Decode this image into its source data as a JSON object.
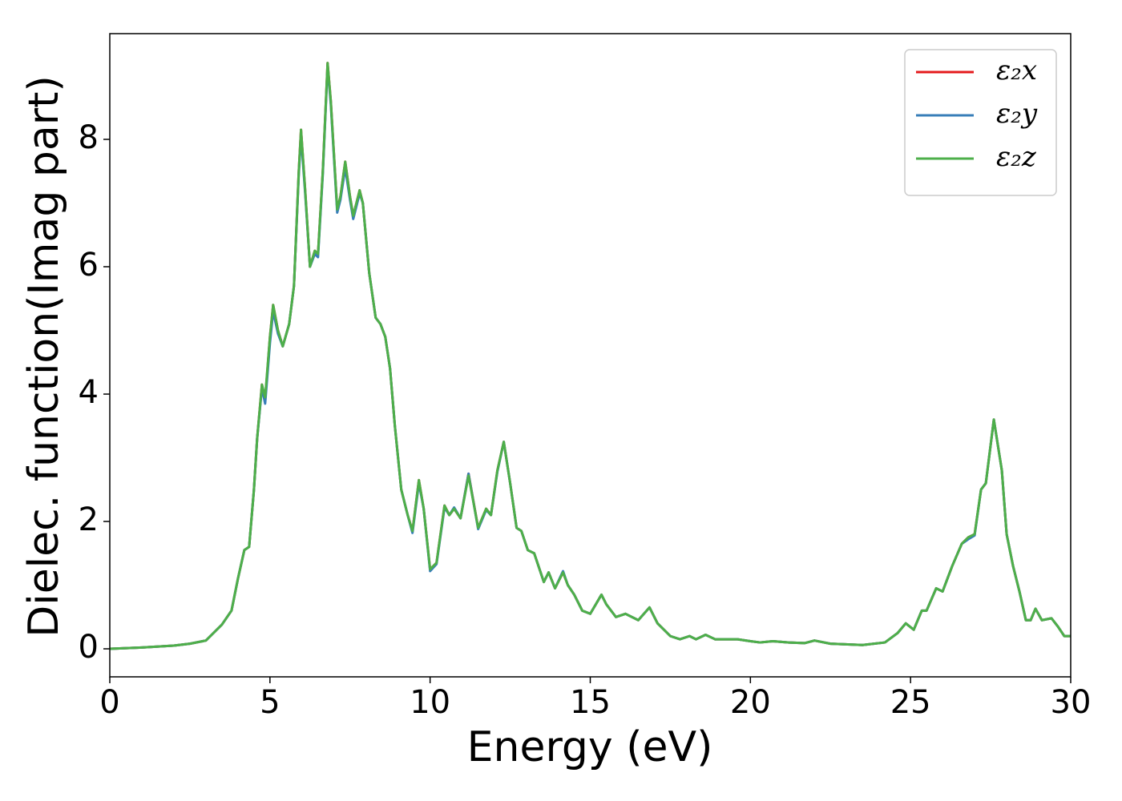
{
  "chart_data": {
    "type": "line",
    "xlabel": "Energy (eV)",
    "ylabel": "Dielec. function(Imag part)",
    "xlim": [
      0,
      30
    ],
    "xticks": [
      0,
      5,
      10,
      15,
      20,
      25,
      30
    ],
    "ylim": [
      -0.44,
      9.66
    ],
    "yticks": [
      0,
      2,
      4,
      6,
      8
    ],
    "legend": "upper right",
    "x": [
      0,
      1,
      2,
      2.5,
      3,
      3.5,
      3.8,
      4.0,
      4.2,
      4.35,
      4.5,
      4.6,
      4.75,
      4.85,
      5.0,
      5.1,
      5.25,
      5.4,
      5.6,
      5.75,
      5.9,
      5.97,
      6.1,
      6.25,
      6.4,
      6.5,
      6.65,
      6.8,
      6.9,
      7.1,
      7.2,
      7.35,
      7.5,
      7.6,
      7.8,
      7.9,
      8.1,
      8.3,
      8.45,
      8.6,
      8.75,
      8.9,
      9.1,
      9.3,
      9.45,
      9.65,
      9.8,
      10.0,
      10.2,
      10.45,
      10.6,
      10.75,
      10.95,
      11.2,
      11.5,
      11.75,
      11.9,
      12.1,
      12.3,
      12.5,
      12.7,
      12.85,
      13.05,
      13.25,
      13.55,
      13.7,
      13.9,
      14.15,
      14.3,
      14.5,
      14.75,
      15.0,
      15.35,
      15.5,
      15.8,
      16.1,
      16.5,
      16.85,
      17.1,
      17.5,
      17.8,
      18.1,
      18.3,
      18.6,
      18.9,
      19.2,
      19.6,
      20.0,
      20.3,
      20.7,
      21.2,
      21.7,
      22.0,
      22.5,
      23.5,
      24.2,
      24.6,
      24.85,
      25.1,
      25.35,
      25.5,
      25.8,
      26.0,
      26.3,
      26.6,
      26.8,
      27.0,
      27.2,
      27.35,
      27.6,
      27.85,
      28.0,
      28.2,
      28.4,
      28.6,
      28.75,
      28.9,
      29.1,
      29.4,
      29.6,
      29.8,
      30.0
    ],
    "series": [
      {
        "name": "ε₂x",
        "color": "#e41a1c",
        "values": [
          0,
          0.02,
          0.05,
          0.08,
          0.13,
          0.38,
          0.6,
          1.1,
          1.55,
          1.6,
          2.5,
          3.3,
          4.15,
          3.9,
          4.9,
          5.4,
          5.0,
          4.75,
          5.1,
          5.7,
          7.5,
          8.15,
          7.2,
          6.0,
          6.25,
          6.2,
          7.5,
          9.2,
          8.6,
          6.9,
          7.1,
          7.65,
          7.1,
          6.8,
          7.2,
          7.0,
          5.9,
          5.2,
          5.1,
          4.9,
          4.4,
          3.5,
          2.5,
          2.1,
          1.85,
          2.65,
          2.2,
          1.25,
          1.35,
          2.25,
          2.1,
          2.2,
          2.05,
          2.75,
          1.9,
          2.2,
          2.1,
          2.8,
          3.25,
          2.6,
          1.9,
          1.85,
          1.55,
          1.5,
          1.05,
          1.2,
          0.95,
          1.2,
          1.0,
          0.85,
          0.6,
          0.55,
          0.85,
          0.7,
          0.5,
          0.55,
          0.45,
          0.65,
          0.4,
          0.2,
          0.15,
          0.2,
          0.15,
          0.22,
          0.15,
          0.15,
          0.15,
          0.12,
          0.1,
          0.12,
          0.1,
          0.09,
          0.13,
          0.08,
          0.06,
          0.1,
          0.25,
          0.4,
          0.3,
          0.6,
          0.6,
          0.95,
          0.9,
          1.3,
          1.65,
          1.75,
          1.8,
          2.5,
          2.6,
          3.6,
          2.8,
          1.8,
          1.3,
          0.9,
          0.45,
          0.45,
          0.63,
          0.45,
          0.48,
          0.35,
          0.2,
          0.2
        ]
      },
      {
        "name": "ε₂y",
        "color": "#377eb8",
        "values": [
          0,
          0.02,
          0.05,
          0.08,
          0.13,
          0.38,
          0.6,
          1.1,
          1.55,
          1.6,
          2.5,
          3.3,
          4.1,
          3.85,
          4.8,
          5.3,
          4.95,
          4.75,
          5.1,
          5.7,
          7.45,
          8.05,
          7.15,
          6.0,
          6.2,
          6.15,
          7.45,
          9.15,
          8.55,
          6.85,
          7.05,
          7.55,
          7.05,
          6.75,
          7.15,
          7.0,
          5.9,
          5.2,
          5.1,
          4.9,
          4.4,
          3.5,
          2.5,
          2.1,
          1.82,
          2.6,
          2.2,
          1.22,
          1.33,
          2.22,
          2.1,
          2.22,
          2.05,
          2.75,
          1.88,
          2.18,
          2.1,
          2.78,
          3.25,
          2.6,
          1.9,
          1.85,
          1.55,
          1.5,
          1.05,
          1.2,
          0.95,
          1.22,
          1.0,
          0.85,
          0.6,
          0.55,
          0.85,
          0.7,
          0.5,
          0.55,
          0.45,
          0.65,
          0.4,
          0.2,
          0.15,
          0.2,
          0.15,
          0.22,
          0.15,
          0.15,
          0.15,
          0.12,
          0.1,
          0.12,
          0.1,
          0.09,
          0.13,
          0.08,
          0.06,
          0.1,
          0.25,
          0.4,
          0.3,
          0.6,
          0.6,
          0.95,
          0.9,
          1.3,
          1.65,
          1.72,
          1.78,
          2.5,
          2.6,
          3.6,
          2.8,
          1.8,
          1.3,
          0.9,
          0.45,
          0.45,
          0.63,
          0.45,
          0.48,
          0.35,
          0.2,
          0.2
        ]
      },
      {
        "name": "ε₂z",
        "color": "#4daf4a",
        "values": [
          0,
          0.02,
          0.05,
          0.08,
          0.13,
          0.38,
          0.6,
          1.1,
          1.55,
          1.6,
          2.5,
          3.3,
          4.15,
          3.95,
          4.9,
          5.4,
          5.0,
          4.75,
          5.1,
          5.7,
          7.5,
          8.15,
          7.2,
          6.0,
          6.25,
          6.2,
          7.5,
          9.2,
          8.6,
          6.9,
          7.1,
          7.65,
          7.1,
          6.8,
          7.2,
          7.0,
          5.9,
          5.2,
          5.1,
          4.9,
          4.4,
          3.5,
          2.5,
          2.1,
          1.85,
          2.65,
          2.2,
          1.25,
          1.35,
          2.25,
          2.1,
          2.2,
          2.05,
          2.72,
          1.9,
          2.2,
          2.1,
          2.8,
          3.25,
          2.6,
          1.9,
          1.85,
          1.55,
          1.5,
          1.05,
          1.2,
          0.95,
          1.2,
          1.0,
          0.85,
          0.6,
          0.55,
          0.85,
          0.7,
          0.5,
          0.55,
          0.45,
          0.65,
          0.4,
          0.2,
          0.15,
          0.2,
          0.15,
          0.22,
          0.15,
          0.15,
          0.15,
          0.12,
          0.1,
          0.12,
          0.1,
          0.09,
          0.13,
          0.08,
          0.06,
          0.1,
          0.25,
          0.4,
          0.3,
          0.6,
          0.6,
          0.95,
          0.9,
          1.3,
          1.65,
          1.75,
          1.8,
          2.5,
          2.6,
          3.6,
          2.8,
          1.8,
          1.3,
          0.9,
          0.45,
          0.45,
          0.63,
          0.45,
          0.48,
          0.35,
          0.2,
          0.2
        ]
      }
    ]
  }
}
